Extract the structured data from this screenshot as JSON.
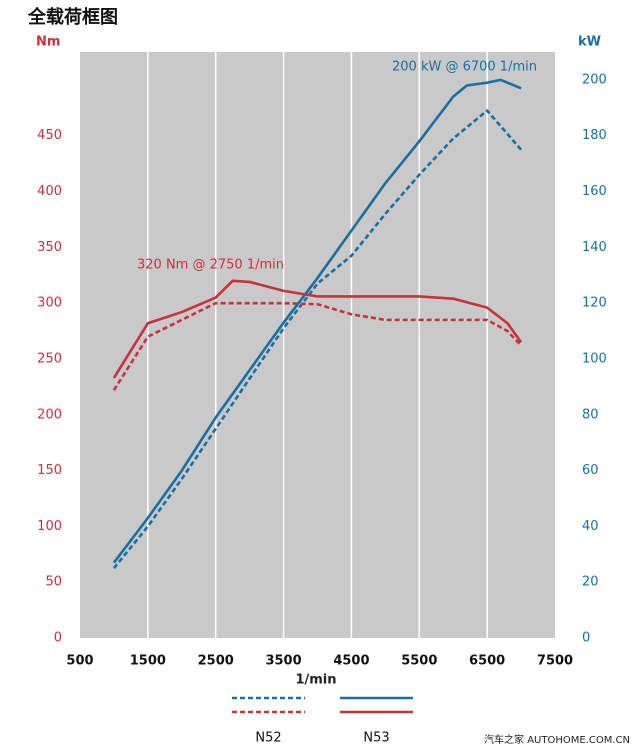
{
  "chart_data": {
    "type": "line",
    "title": "全载荷框图",
    "ylabel": "Nm",
    "y2label": "kW",
    "xlabel": "1/min",
    "xlim": [
      500,
      7500
    ],
    "xticks": [
      500,
      1500,
      2500,
      3500,
      4500,
      5500,
      6500,
      7500
    ],
    "ylim": [
      0,
      525
    ],
    "yticks": [
      0,
      50,
      100,
      150,
      200,
      250,
      300,
      350,
      400,
      450
    ],
    "y2lim": [
      0,
      210
    ],
    "y2ticks": [
      0,
      20,
      40,
      60,
      80,
      100,
      120,
      140,
      160,
      180,
      200
    ],
    "grid": "x",
    "background": "#c9c9c9",
    "series": [
      {
        "name": "N52",
        "color": "#1a6fa0",
        "axis": "y2",
        "dashed": true,
        "x": [
          1000,
          1500,
          2000,
          2500,
          3000,
          3500,
          4000,
          4500,
          5000,
          5500,
          6000,
          6500,
          7000
        ],
        "values": [
          25,
          40,
          57,
          75,
          93,
          111,
          127,
          137,
          152,
          166,
          179,
          189,
          175
        ]
      },
      {
        "name": "N52",
        "color": "#c8323c",
        "axis": "y",
        "dashed": true,
        "x": [
          1000,
          1500,
          2000,
          2500,
          3000,
          3500,
          4000,
          4500,
          5000,
          5500,
          6000,
          6500,
          6800,
          7000
        ],
        "values": [
          222,
          270,
          285,
          300,
          300,
          300,
          299,
          290,
          285,
          285,
          285,
          285,
          275,
          262
        ]
      },
      {
        "name": "N53",
        "color": "#1a6fa0",
        "axis": "y2",
        "dashed": false,
        "x": [
          1000,
          1500,
          2000,
          2500,
          3000,
          3500,
          4000,
          4500,
          5000,
          5500,
          6000,
          6200,
          6500,
          6700,
          7000
        ],
        "values": [
          27,
          43,
          60,
          79,
          96,
          113,
          129,
          146,
          163,
          178,
          194,
          198,
          199,
          200,
          197
        ]
      },
      {
        "name": "N53",
        "color": "#c8323c",
        "axis": "y",
        "dashed": false,
        "x": [
          1000,
          1500,
          2000,
          2500,
          2750,
          3000,
          3500,
          4000,
          4500,
          5000,
          5500,
          6000,
          6500,
          6800,
          7000
        ],
        "values": [
          233,
          282,
          292,
          305,
          320,
          319,
          311,
          306,
          306,
          306,
          306,
          304,
          296,
          282,
          265
        ]
      }
    ],
    "annotations": [
      {
        "text": "200 kW @ 6700 1/min",
        "color": "#1a6fa0"
      },
      {
        "text": "320 Nm @ 2750 1/min",
        "color": "#c8323c"
      }
    ],
    "watermark": "汽车之家 AUTOHOME.COM.CN"
  }
}
